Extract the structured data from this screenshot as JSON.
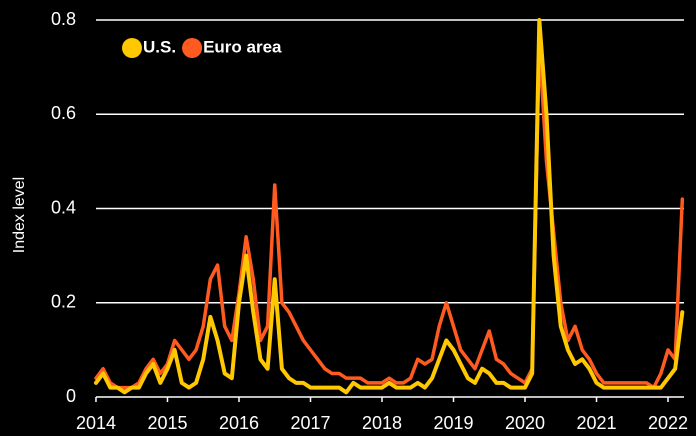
{
  "chart_data": {
    "type": "line",
    "ylabel": "Index level",
    "x": [
      2014.0,
      2014.1,
      2014.2,
      2014.3,
      2014.4,
      2014.5,
      2014.6,
      2014.7,
      2014.8,
      2014.9,
      2015.0,
      2015.1,
      2015.2,
      2015.3,
      2015.4,
      2015.5,
      2015.6,
      2015.7,
      2015.8,
      2015.9,
      2016.0,
      2016.1,
      2016.2,
      2016.3,
      2016.4,
      2016.5,
      2016.6,
      2016.7,
      2016.8,
      2016.9,
      2017.0,
      2017.1,
      2017.2,
      2017.3,
      2017.4,
      2017.5,
      2017.6,
      2017.7,
      2017.8,
      2017.9,
      2018.0,
      2018.1,
      2018.2,
      2018.3,
      2018.4,
      2018.5,
      2018.6,
      2018.7,
      2018.8,
      2018.9,
      2019.0,
      2019.1,
      2019.2,
      2019.3,
      2019.4,
      2019.5,
      2019.6,
      2019.7,
      2019.8,
      2019.9,
      2020.0,
      2020.1,
      2020.2,
      2020.3,
      2020.4,
      2020.5,
      2020.6,
      2020.7,
      2020.8,
      2020.9,
      2021.0,
      2021.1,
      2021.2,
      2021.3,
      2021.4,
      2021.5,
      2021.6,
      2021.7,
      2021.8,
      2021.9,
      2022.0,
      2022.1,
      2022.2
    ],
    "series": [
      {
        "name": "U.S.",
        "color": "#ffc800",
        "values": [
          0.03,
          0.05,
          0.02,
          0.02,
          0.01,
          0.02,
          0.02,
          0.05,
          0.07,
          0.03,
          0.06,
          0.1,
          0.03,
          0.02,
          0.03,
          0.08,
          0.17,
          0.12,
          0.05,
          0.04,
          0.2,
          0.3,
          0.18,
          0.08,
          0.06,
          0.25,
          0.06,
          0.04,
          0.03,
          0.03,
          0.02,
          0.02,
          0.02,
          0.02,
          0.02,
          0.01,
          0.03,
          0.02,
          0.02,
          0.02,
          0.02,
          0.03,
          0.02,
          0.02,
          0.02,
          0.03,
          0.02,
          0.04,
          0.08,
          0.12,
          0.1,
          0.07,
          0.04,
          0.03,
          0.06,
          0.05,
          0.03,
          0.03,
          0.02,
          0.02,
          0.02,
          0.05,
          0.8,
          0.6,
          0.3,
          0.15,
          0.1,
          0.07,
          0.08,
          0.06,
          0.03,
          0.02,
          0.02,
          0.02,
          0.02,
          0.02,
          0.02,
          0.02,
          0.02,
          0.02,
          0.04,
          0.06,
          0.18
        ]
      },
      {
        "name": "Euro area",
        "color": "#ff5a1f",
        "values": [
          0.04,
          0.06,
          0.03,
          0.02,
          0.02,
          0.02,
          0.03,
          0.06,
          0.08,
          0.05,
          0.07,
          0.12,
          0.1,
          0.08,
          0.1,
          0.15,
          0.25,
          0.28,
          0.15,
          0.12,
          0.22,
          0.34,
          0.25,
          0.12,
          0.15,
          0.45,
          0.2,
          0.18,
          0.15,
          0.12,
          0.1,
          0.08,
          0.06,
          0.05,
          0.05,
          0.04,
          0.04,
          0.04,
          0.03,
          0.03,
          0.03,
          0.04,
          0.03,
          0.03,
          0.04,
          0.08,
          0.07,
          0.08,
          0.15,
          0.2,
          0.15,
          0.1,
          0.08,
          0.06,
          0.1,
          0.14,
          0.08,
          0.07,
          0.05,
          0.04,
          0.03,
          0.06,
          0.75,
          0.5,
          0.35,
          0.2,
          0.12,
          0.15,
          0.1,
          0.08,
          0.05,
          0.03,
          0.03,
          0.03,
          0.03,
          0.03,
          0.03,
          0.03,
          0.02,
          0.05,
          0.1,
          0.08,
          0.42
        ]
      }
    ],
    "xlim": [
      2013.95,
      2022.25
    ],
    "xticks": [
      2014,
      2015,
      2016,
      2017,
      2018,
      2019,
      2020,
      2021,
      2022
    ],
    "ylim": [
      0,
      0.82
    ],
    "yticks": [
      0,
      0.2,
      0.4,
      0.6,
      0.8
    ],
    "grid": true,
    "legend": "top-left"
  }
}
